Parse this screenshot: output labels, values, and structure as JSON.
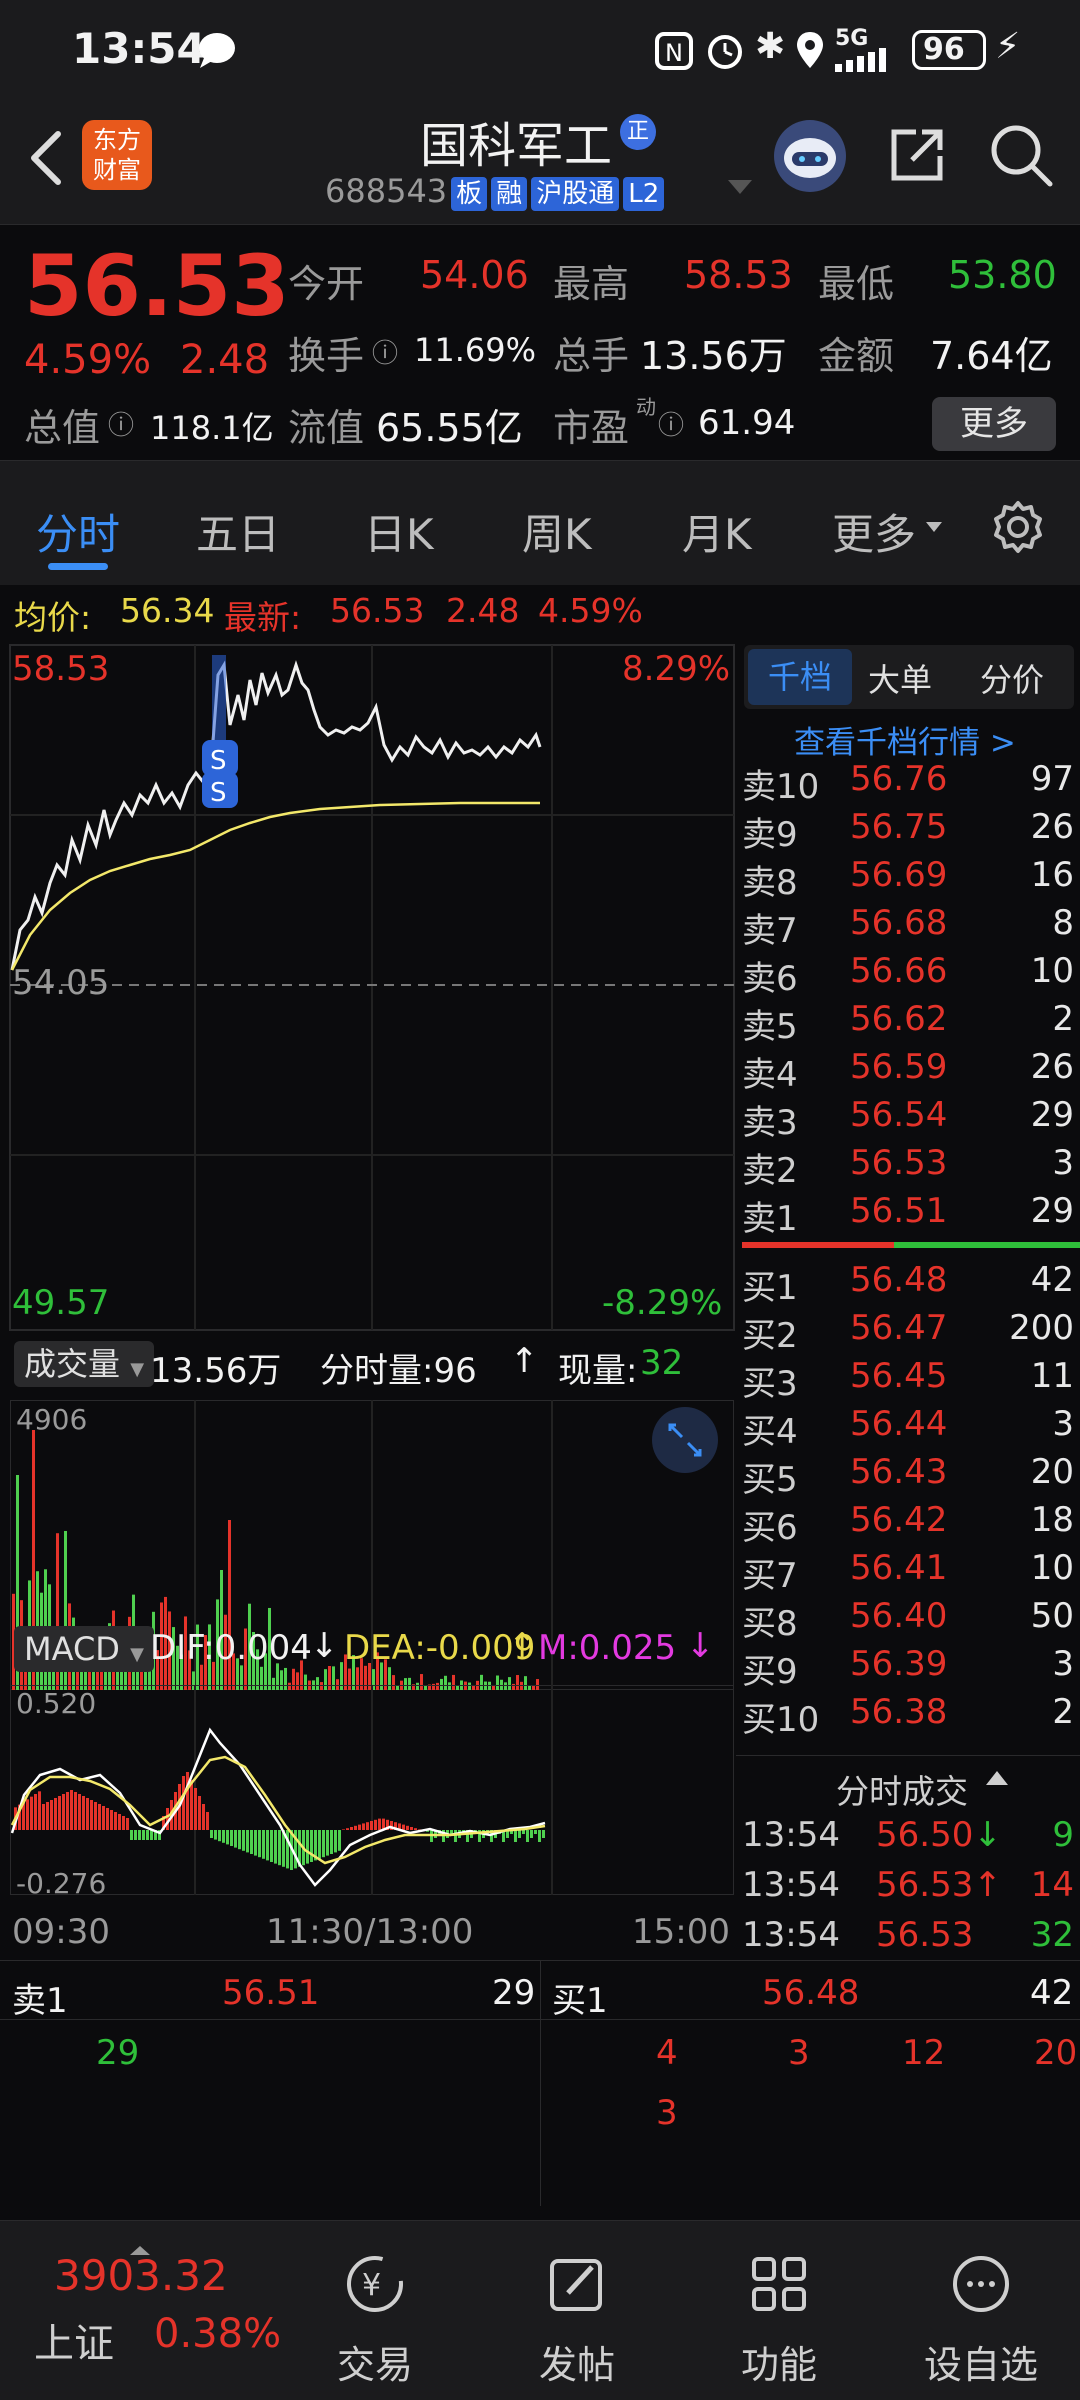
{
  "status_bar": {
    "time": "13:54",
    "battery": "96",
    "network": "5G"
  },
  "header": {
    "brand_line1": "东方",
    "brand_line2": "财富",
    "stock_name": "国科军工",
    "name_badge": "正",
    "stock_code": "688543",
    "tags": [
      "板",
      "融",
      "沪股通",
      "L2"
    ]
  },
  "quote": {
    "price": "56.53",
    "change_pct": "4.59%",
    "change": "2.48",
    "open_label": "今开",
    "open": "54.06",
    "high_label": "最高",
    "high": "58.53",
    "low_label": "最低",
    "low": "53.80",
    "turnover_label": "换手",
    "turnover": "11.69%",
    "volume_label": "总手",
    "volume": "13.56万",
    "amount_label": "金额",
    "amount": "7.64亿",
    "mktcap_label": "总值",
    "mktcap": "118.1亿",
    "float_label": "流值",
    "float": "65.55亿",
    "pe_label": "市盈",
    "pe_sup": "动",
    "pe": "61.94",
    "more_button": "更多"
  },
  "tabs": [
    "分时",
    "五日",
    "日K",
    "周K",
    "月K",
    "更多"
  ],
  "avg_bar": {
    "avg_label": "均价:",
    "avg_value": "56.34",
    "latest_label": "最新:",
    "latest_value": "56.53",
    "change": "2.48",
    "change_pct": "4.59%"
  },
  "chart": {
    "price_high": "58.53",
    "price_mid": "54.05",
    "price_low": "49.57",
    "pct_high": "8.29%",
    "pct_low": "-8.29%",
    "volume_selector": "成交量",
    "volume_total": "13.56万",
    "minute_volume_label": "分时量:96",
    "current_volume_label": "现量:",
    "current_volume": "32",
    "volume_max": "4906",
    "macd_selector": "MACD",
    "dif": "DIF:0.004",
    "dea": "DEA:-0.009",
    "m": "M:0.025",
    "macd_high": "0.520",
    "macd_low": "-0.276",
    "time_start": "09:30",
    "time_mid": "11:30/13:00",
    "time_end": "15:00",
    "marker": "S"
  },
  "orderbook": {
    "tabs": [
      "千档",
      "大单",
      "分价"
    ],
    "link": "查看千档行情 >",
    "sells": [
      {
        "label": "卖10",
        "price": "56.76",
        "vol": "97"
      },
      {
        "label": "卖9",
        "price": "56.75",
        "vol": "26"
      },
      {
        "label": "卖8",
        "price": "56.69",
        "vol": "16"
      },
      {
        "label": "卖7",
        "price": "56.68",
        "vol": "8"
      },
      {
        "label": "卖6",
        "price": "56.66",
        "vol": "10"
      },
      {
        "label": "卖5",
        "price": "56.62",
        "vol": "2"
      },
      {
        "label": "卖4",
        "price": "56.59",
        "vol": "26"
      },
      {
        "label": "卖3",
        "price": "56.54",
        "vol": "29"
      },
      {
        "label": "卖2",
        "price": "56.53",
        "vol": "3"
      },
      {
        "label": "卖1",
        "price": "56.51",
        "vol": "29"
      }
    ],
    "buys": [
      {
        "label": "买1",
        "price": "56.48",
        "vol": "42"
      },
      {
        "label": "买2",
        "price": "56.47",
        "vol": "200"
      },
      {
        "label": "买3",
        "price": "56.45",
        "vol": "11"
      },
      {
        "label": "买4",
        "price": "56.44",
        "vol": "3"
      },
      {
        "label": "买5",
        "price": "56.43",
        "vol": "20"
      },
      {
        "label": "买6",
        "price": "56.42",
        "vol": "18"
      },
      {
        "label": "买7",
        "price": "56.41",
        "vol": "10"
      },
      {
        "label": "买8",
        "price": "56.40",
        "vol": "50"
      },
      {
        "label": "买9",
        "price": "56.39",
        "vol": "3"
      },
      {
        "label": "买10",
        "price": "56.38",
        "vol": "2"
      }
    ],
    "trades_title": "分时成交",
    "trades": [
      {
        "time": "13:54",
        "price": "56.50",
        "dir": "down",
        "vol": "9"
      },
      {
        "time": "13:54",
        "price": "56.53",
        "dir": "up",
        "vol": "14"
      },
      {
        "time": "13:54",
        "price": "56.53",
        "dir": "",
        "vol": "32"
      }
    ]
  },
  "queue": {
    "sell_label": "卖1",
    "sell_price": "56.51",
    "sell_total": "29",
    "sell_orders": [
      "29"
    ],
    "buy_label": "买1",
    "buy_price": "56.48",
    "buy_total": "42",
    "buy_orders": [
      "4",
      "3",
      "12",
      "20",
      "3"
    ]
  },
  "bottom_nav": {
    "index_value": "3903.32",
    "index_name": "上证",
    "index_change": "0.38%",
    "items": [
      "交易",
      "发帖",
      "功能",
      "设自选"
    ]
  },
  "colors": {
    "up": "#e5332a",
    "down": "#2fbf3a",
    "accent": "#3b8ef5",
    "avg": "#e9d94a"
  }
}
